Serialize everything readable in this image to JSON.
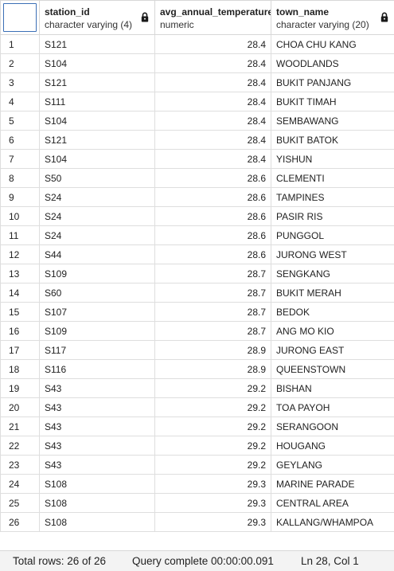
{
  "columns": [
    {
      "name": "station_id",
      "type": "character varying (4)",
      "locked": true
    },
    {
      "name": "avg_annual_temperature",
      "type": "numeric",
      "locked": false
    },
    {
      "name": "town_name",
      "type": "character varying (20)",
      "locked": true
    }
  ],
  "rows": [
    {
      "n": "1",
      "station_id": "S121",
      "temp": "28.4",
      "town": "CHOA CHU KANG"
    },
    {
      "n": "2",
      "station_id": "S104",
      "temp": "28.4",
      "town": "WOODLANDS"
    },
    {
      "n": "3",
      "station_id": "S121",
      "temp": "28.4",
      "town": "BUKIT PANJANG"
    },
    {
      "n": "4",
      "station_id": "S111",
      "temp": "28.4",
      "town": "BUKIT TIMAH"
    },
    {
      "n": "5",
      "station_id": "S104",
      "temp": "28.4",
      "town": "SEMBAWANG"
    },
    {
      "n": "6",
      "station_id": "S121",
      "temp": "28.4",
      "town": "BUKIT BATOK"
    },
    {
      "n": "7",
      "station_id": "S104",
      "temp": "28.4",
      "town": "YISHUN"
    },
    {
      "n": "8",
      "station_id": "S50",
      "temp": "28.6",
      "town": "CLEMENTI"
    },
    {
      "n": "9",
      "station_id": "S24",
      "temp": "28.6",
      "town": "TAMPINES"
    },
    {
      "n": "10",
      "station_id": "S24",
      "temp": "28.6",
      "town": "PASIR RIS"
    },
    {
      "n": "11",
      "station_id": "S24",
      "temp": "28.6",
      "town": "PUNGGOL"
    },
    {
      "n": "12",
      "station_id": "S44",
      "temp": "28.6",
      "town": "JURONG WEST"
    },
    {
      "n": "13",
      "station_id": "S109",
      "temp": "28.7",
      "town": "SENGKANG"
    },
    {
      "n": "14",
      "station_id": "S60",
      "temp": "28.7",
      "town": "BUKIT MERAH"
    },
    {
      "n": "15",
      "station_id": "S107",
      "temp": "28.7",
      "town": "BEDOK"
    },
    {
      "n": "16",
      "station_id": "S109",
      "temp": "28.7",
      "town": "ANG MO KIO"
    },
    {
      "n": "17",
      "station_id": "S117",
      "temp": "28.9",
      "town": "JURONG EAST"
    },
    {
      "n": "18",
      "station_id": "S116",
      "temp": "28.9",
      "town": "QUEENSTOWN"
    },
    {
      "n": "19",
      "station_id": "S43",
      "temp": "29.2",
      "town": "BISHAN"
    },
    {
      "n": "20",
      "station_id": "S43",
      "temp": "29.2",
      "town": "TOA PAYOH"
    },
    {
      "n": "21",
      "station_id": "S43",
      "temp": "29.2",
      "town": "SERANGOON"
    },
    {
      "n": "22",
      "station_id": "S43",
      "temp": "29.2",
      "town": "HOUGANG"
    },
    {
      "n": "23",
      "station_id": "S43",
      "temp": "29.2",
      "town": "GEYLANG"
    },
    {
      "n": "24",
      "station_id": "S108",
      "temp": "29.3",
      "town": "MARINE PARADE"
    },
    {
      "n": "25",
      "station_id": "S108",
      "temp": "29.3",
      "town": "CENTRAL AREA"
    },
    {
      "n": "26",
      "station_id": "S108",
      "temp": "29.3",
      "town": "KALLANG/WHAMPOA"
    }
  ],
  "status": {
    "total_rows": "Total rows: 26 of 26",
    "query": "Query complete 00:00:00.091",
    "position": "Ln 28, Col 1"
  },
  "colors": {
    "selection_border": "#3b6fb6",
    "grid_line": "#d7d7d7",
    "statusbar_bg": "#f3f3f3"
  },
  "icons": {
    "lock": "lock-icon"
  }
}
